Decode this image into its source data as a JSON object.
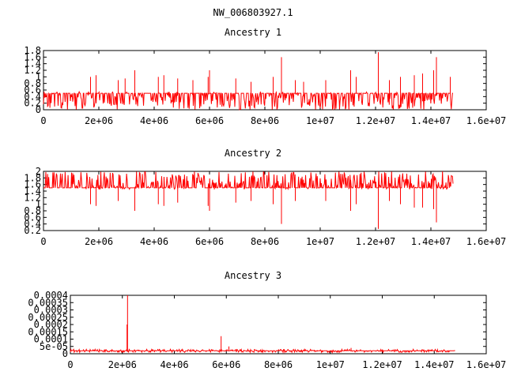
{
  "page_title": "NW_006803927.1",
  "chart_data": [
    {
      "type": "line",
      "title": "Ancestry 1",
      "xlabel": "",
      "ylabel": "",
      "xlim": [
        0,
        16000000
      ],
      "ylim": [
        0,
        1.8
      ],
      "x_ticks": [
        "0",
        "2e+06",
        "4e+06",
        "6e+06",
        "8e+06",
        "1e+07",
        "1.2e+07",
        "1.4e+07",
        "1.6e+07"
      ],
      "y_ticks": [
        "0",
        "0.2",
        "0.4",
        "0.6",
        "0.8",
        "1",
        "1.2",
        "1.4",
        "1.6",
        "1.8"
      ],
      "series": [
        {
          "color": "#ff0000",
          "x_start": 0,
          "x_end": 14800000,
          "baseline": 0.5,
          "noise_range": [
            0.0,
            0.55
          ],
          "spikes": [
            {
              "x": 1700000,
              "y": 1.0
            },
            {
              "x": 1900000,
              "y": 1.05
            },
            {
              "x": 2700000,
              "y": 0.9
            },
            {
              "x": 2950000,
              "y": 0.95
            },
            {
              "x": 3300000,
              "y": 1.2
            },
            {
              "x": 4150000,
              "y": 1.0
            },
            {
              "x": 4350000,
              "y": 1.05
            },
            {
              "x": 4850000,
              "y": 0.95
            },
            {
              "x": 5400000,
              "y": 0.9
            },
            {
              "x": 5950000,
              "y": 1.0
            },
            {
              "x": 6000000,
              "y": 1.2
            },
            {
              "x": 6950000,
              "y": 0.95
            },
            {
              "x": 7500000,
              "y": 0.85
            },
            {
              "x": 8300000,
              "y": 1.0
            },
            {
              "x": 8600000,
              "y": 1.6
            },
            {
              "x": 9100000,
              "y": 0.9
            },
            {
              "x": 9400000,
              "y": 0.85
            },
            {
              "x": 10200000,
              "y": 0.9
            },
            {
              "x": 11100000,
              "y": 1.2
            },
            {
              "x": 11300000,
              "y": 1.0
            },
            {
              "x": 12100000,
              "y": 1.75
            },
            {
              "x": 12500000,
              "y": 0.9
            },
            {
              "x": 12900000,
              "y": 1.0
            },
            {
              "x": 13400000,
              "y": 1.05
            },
            {
              "x": 13700000,
              "y": 1.1
            },
            {
              "x": 14100000,
              "y": 1.2
            },
            {
              "x": 14200000,
              "y": 1.6
            },
            {
              "x": 14700000,
              "y": 1.0
            }
          ]
        }
      ]
    },
    {
      "type": "line",
      "title": "Ancestry 2",
      "xlabel": "",
      "ylabel": "",
      "xlim": [
        0,
        16000000
      ],
      "ylim": [
        0.2,
        2
      ],
      "x_ticks": [
        "0",
        "2e+06",
        "4e+06",
        "6e+06",
        "8e+06",
        "1e+07",
        "1.2e+07",
        "1.4e+07",
        "1.6e+07"
      ],
      "y_ticks": [
        "0.2",
        "0.4",
        "0.6",
        "0.8",
        "1",
        "1.2",
        "1.4",
        "1.6",
        "1.8",
        "2"
      ],
      "series": [
        {
          "color": "#ff0000",
          "x_start": 0,
          "x_end": 14800000,
          "baseline": 1.5,
          "noise_range": [
            1.45,
            2.0
          ],
          "spikes": [
            {
              "x": 1700000,
              "y": 1.0
            },
            {
              "x": 1900000,
              "y": 0.95
            },
            {
              "x": 2700000,
              "y": 1.1
            },
            {
              "x": 3300000,
              "y": 0.8
            },
            {
              "x": 4150000,
              "y": 1.0
            },
            {
              "x": 4350000,
              "y": 0.95
            },
            {
              "x": 4850000,
              "y": 1.05
            },
            {
              "x": 5950000,
              "y": 0.95
            },
            {
              "x": 6000000,
              "y": 0.8
            },
            {
              "x": 6950000,
              "y": 1.05
            },
            {
              "x": 7500000,
              "y": 1.1
            },
            {
              "x": 8300000,
              "y": 1.0
            },
            {
              "x": 8600000,
              "y": 0.4
            },
            {
              "x": 9100000,
              "y": 1.1
            },
            {
              "x": 10200000,
              "y": 1.1
            },
            {
              "x": 11100000,
              "y": 0.8
            },
            {
              "x": 11300000,
              "y": 1.0
            },
            {
              "x": 12100000,
              "y": 0.25
            },
            {
              "x": 12500000,
              "y": 1.1
            },
            {
              "x": 12900000,
              "y": 1.0
            },
            {
              "x": 13400000,
              "y": 0.9
            },
            {
              "x": 13700000,
              "y": 0.9
            },
            {
              "x": 14100000,
              "y": 0.85
            },
            {
              "x": 14200000,
              "y": 0.45
            }
          ]
        }
      ]
    },
    {
      "type": "line",
      "title": "Ancestry 3",
      "xlabel": "",
      "ylabel": "",
      "xlim": [
        0,
        16000000
      ],
      "ylim": [
        0,
        0.0004
      ],
      "x_ticks": [
        "0",
        "2e+06",
        "4e+06",
        "6e+06",
        "8e+06",
        "1e+07",
        "1.2e+07",
        "1.4e+07",
        "1.6e+07"
      ],
      "y_ticks": [
        "0",
        "5e-05",
        "0.0001",
        "0.00015",
        "0.0002",
        "0.00025",
        "0.0003",
        "0.00035",
        "0.0004"
      ],
      "series": [
        {
          "color": "#ff0000",
          "x_start": 0,
          "x_end": 14800000,
          "baseline": 2e-05,
          "noise_range": [
            1e-05,
            3e-05
          ],
          "spikes": [
            {
              "x": 2200000,
              "y": 0.0004
            },
            {
              "x": 2180000,
              "y": 0.0002
            },
            {
              "x": 5800000,
              "y": 0.00012
            },
            {
              "x": 6100000,
              "y": 5e-05
            },
            {
              "x": 10800000,
              "y": 4e-05
            }
          ]
        }
      ]
    }
  ]
}
